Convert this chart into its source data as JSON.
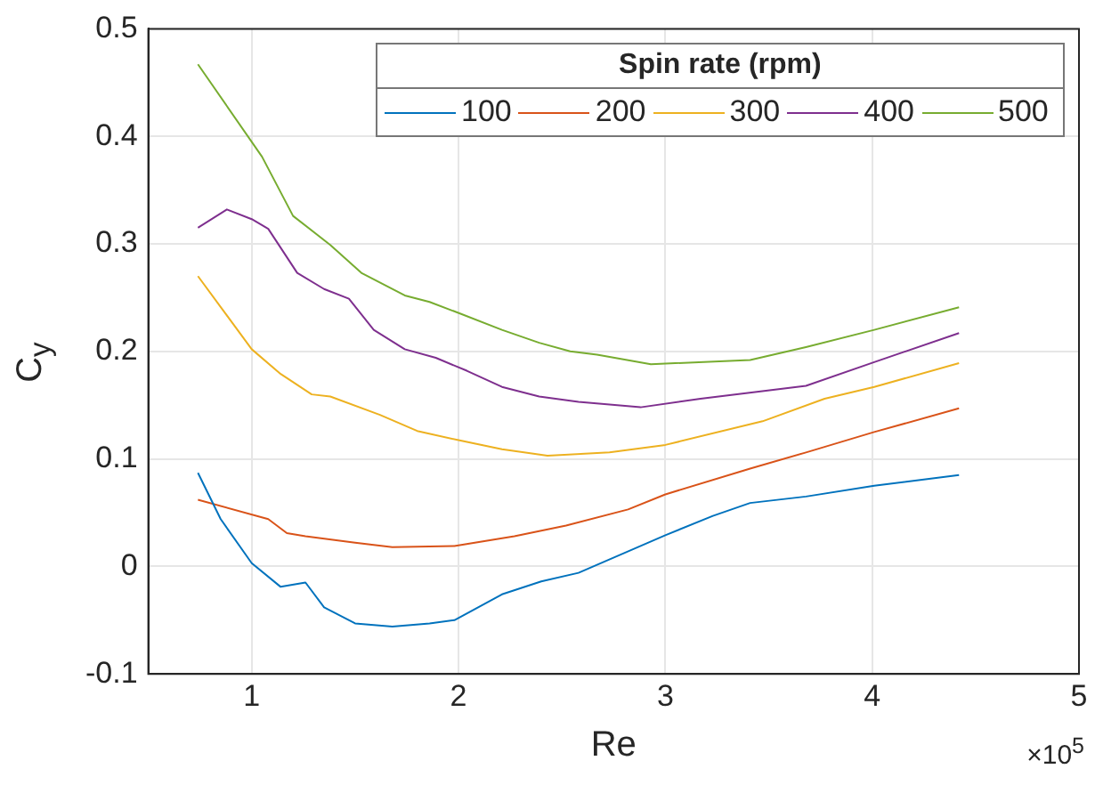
{
  "chart_data": {
    "type": "line",
    "xlabel": "Re",
    "ylabel": "C$_{y}$",
    "legend_title": "Spin rate (rpm)",
    "legend": "top right",
    "grid": true,
    "marker": "none",
    "line_style": "solid",
    "xlim": [
      0.5,
      5
    ],
    "xticks": [
      1,
      2,
      3,
      4,
      5
    ],
    "ylim": [
      -0.1,
      0.5
    ],
    "yticks": [
      -0.1,
      0,
      0.1,
      0.2,
      0.3,
      0.4,
      0.5
    ],
    "annotations": [
      "×10$^{5}$"
    ],
    "series": [
      {
        "name": "100",
        "color": "#0072bd",
        "x": [
          0.74,
          0.85,
          1.0,
          1.14,
          1.26,
          1.35,
          1.5,
          1.68,
          1.86,
          1.98,
          2.21,
          2.4,
          2.58,
          3.0,
          3.23,
          3.41,
          3.68,
          4.01,
          4.42
        ],
        "values": [
          0.087,
          0.044,
          0.003,
          -0.019,
          -0.015,
          -0.038,
          -0.053,
          -0.056,
          -0.053,
          -0.05,
          -0.026,
          -0.014,
          -0.006,
          0.029,
          0.047,
          0.059,
          0.065,
          0.075,
          0.085
        ]
      },
      {
        "name": "200",
        "color": "#d95319",
        "x": [
          0.74,
          1.08,
          1.17,
          1.26,
          1.5,
          1.68,
          1.98,
          2.27,
          2.52,
          2.82,
          3.0,
          3.41,
          3.68,
          4.01,
          4.42
        ],
        "values": [
          0.062,
          0.044,
          0.031,
          0.028,
          0.022,
          0.018,
          0.019,
          0.028,
          0.038,
          0.053,
          0.067,
          0.091,
          0.106,
          0.125,
          0.147
        ]
      },
      {
        "name": "300",
        "color": "#edb120",
        "x": [
          0.74,
          1.0,
          1.14,
          1.29,
          1.38,
          1.62,
          1.8,
          2.01,
          2.21,
          2.43,
          2.73,
          3.0,
          3.47,
          3.77,
          4.01,
          4.42
        ],
        "values": [
          0.27,
          0.202,
          0.179,
          0.16,
          0.158,
          0.141,
          0.126,
          0.117,
          0.109,
          0.103,
          0.106,
          0.113,
          0.135,
          0.156,
          0.167,
          0.189
        ]
      },
      {
        "name": "400",
        "color": "#7e2f8e",
        "x": [
          0.74,
          0.88,
          1.0,
          1.08,
          1.22,
          1.35,
          1.47,
          1.59,
          1.74,
          1.89,
          2.04,
          2.21,
          2.39,
          2.58,
          2.88,
          3.17,
          3.68,
          4.01,
          4.42
        ],
        "values": [
          0.315,
          0.332,
          0.323,
          0.314,
          0.273,
          0.258,
          0.249,
          0.22,
          0.202,
          0.194,
          0.182,
          0.167,
          0.158,
          0.153,
          0.148,
          0.156,
          0.168,
          0.19,
          0.217
        ]
      },
      {
        "name": "500",
        "color": "#77ac30",
        "x": [
          0.74,
          1.05,
          1.2,
          1.38,
          1.53,
          1.74,
          1.86,
          2.01,
          2.21,
          2.39,
          2.54,
          2.67,
          2.93,
          3.41,
          3.68,
          4.01,
          4.42
        ],
        "values": [
          0.467,
          0.381,
          0.326,
          0.299,
          0.273,
          0.252,
          0.246,
          0.235,
          0.22,
          0.208,
          0.2,
          0.197,
          0.188,
          0.192,
          0.204,
          0.22,
          0.241
        ]
      }
    ]
  }
}
